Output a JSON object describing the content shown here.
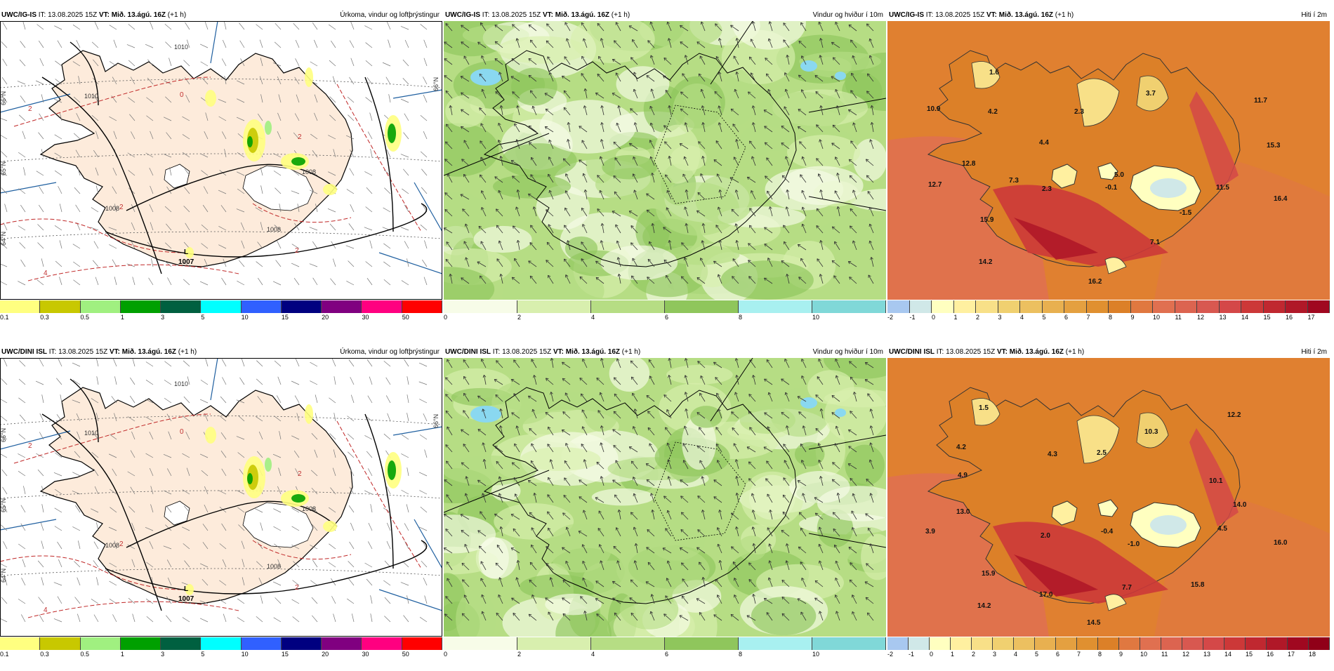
{
  "panels": [
    {
      "id": "p1",
      "model": "UWC/IG-IS",
      "it_label": "IT: 13.08.2025 15Z",
      "vt_label": "VT:",
      "vt_value": "Mið. 13.ágú. 16Z",
      "lead": "(+1 h)",
      "field": "Úrkoma, vindur og loftþrýstingur",
      "kind": "precip",
      "low_label": "L",
      "low_value": "1007",
      "isobar_labels": [
        "1008",
        "1008",
        "1008",
        "1010",
        "1010"
      ],
      "red_labels": [
        "0",
        "2",
        "2",
        "4",
        "2",
        "2"
      ],
      "lat_labels": [
        "66°N",
        "65°N",
        "64°N",
        "66°N"
      ]
    },
    {
      "id": "p2",
      "model": "UWC/IG-IS",
      "it_label": "IT: 13.08.2025 15Z",
      "vt_label": "VT:",
      "vt_value": "Mið. 13.ágú. 16Z",
      "lead": "(+1 h)",
      "field": "Vindur og hviður í 10m",
      "kind": "wind"
    },
    {
      "id": "p3",
      "model": "UWC/IG-IS",
      "it_label": "IT: 13.08.2025 15Z",
      "vt_label": "VT:",
      "vt_value": "Mið. 13.ágú. 16Z",
      "lead": "(+1 h)",
      "field": "Hiti í 2m",
      "kind": "temp",
      "temps": [
        "1.6",
        "3.7",
        "10.9",
        "4.2",
        "2.3",
        "11.7",
        "4.4",
        "15.3",
        "12.8",
        "5.0",
        "7.3",
        "2.3",
        "-0.1",
        "11.5",
        "12.7",
        "16.4",
        "-1.5",
        "15.9",
        "7.1",
        "14.2",
        "16.2"
      ]
    },
    {
      "id": "p4",
      "model": "UWC/DINI ISL",
      "it_label": "IT: 13.08.2025 15Z",
      "vt_label": "VT:",
      "vt_value": "Mið. 13.ágú. 16Z",
      "lead": "(+1 h)",
      "field": "Úrkoma, vindur og loftþrýstingur",
      "kind": "precip",
      "low_label": "L",
      "low_value": "1007",
      "isobar_labels": [
        "1008",
        "1008",
        "1008",
        "1010",
        "1010"
      ],
      "red_labels": [
        "0",
        "2",
        "2",
        "4",
        "2",
        "2"
      ],
      "lat_labels": [
        "66°N",
        "65°N",
        "64°N",
        "66°N"
      ]
    },
    {
      "id": "p5",
      "model": "UWC/DINI ISL",
      "it_label": "IT: 13.08.2025 15Z",
      "vt_label": "VT:",
      "vt_value": "Mið. 13.ágú. 16Z",
      "lead": "(+1 h)",
      "field": "Vindur og hviður í 10m",
      "kind": "wind"
    },
    {
      "id": "p6",
      "model": "UWC/DINI ISL",
      "it_label": "IT: 13.08.2025 15Z",
      "vt_label": "VT:",
      "vt_value": "Mið. 13.ágú. 16Z",
      "lead": "(+1 h)",
      "field": "Hiti í 2m",
      "kind": "temp",
      "temps": [
        "1.5",
        "12.2",
        "10.3",
        "4.2",
        "4.3",
        "2.5",
        "4.9",
        "10.1",
        "14.0",
        "13.0",
        "3.9",
        "2.0",
        "-0.4",
        "4.5",
        "-1.0",
        "16.0",
        "15.9",
        "7.7",
        "15.8",
        "14.2",
        "17.0",
        "14.5"
      ]
    }
  ],
  "scales": {
    "precip": {
      "ticks": [
        "0.1",
        "0.3",
        "0.5",
        "1",
        "3",
        "5",
        "10",
        "15",
        "20",
        "30",
        "50"
      ],
      "colors": [
        "#ffff80",
        "#c8c800",
        "#a0f080",
        "#00a000",
        "#006040",
        "#00ffff",
        "#3060ff",
        "#000080",
        "#800080",
        "#ff0080",
        "#ff0000"
      ]
    },
    "wind": {
      "ticks": [
        "0",
        "2",
        "4",
        "6",
        "8",
        "10"
      ],
      "colors": [
        "#f7fce8",
        "#d8efae",
        "#b6dd84",
        "#8fc65c",
        "#a8f0f0",
        "#80d8d8"
      ]
    },
    "temp1": {
      "ticks": [
        "-2",
        "-1",
        "0",
        "1",
        "2",
        "3",
        "4",
        "5",
        "6",
        "7",
        "8",
        "9",
        "10",
        "11",
        "12",
        "13",
        "14",
        "15",
        "16",
        "17"
      ],
      "colors": [
        "#a8c8f0",
        "#d0e8e8",
        "#ffffc0",
        "#fff0a0",
        "#f8e088",
        "#f0d070",
        "#ecc060",
        "#e8b050",
        "#e4a040",
        "#e09030",
        "#dc8028",
        "#e07840",
        "#e07050",
        "#dc6450",
        "#d85850",
        "#d44848",
        "#cc3838",
        "#c02830",
        "#b01828",
        "#a00820"
      ]
    },
    "temp2": {
      "ticks": [
        "-2",
        "-1",
        "0",
        "1",
        "2",
        "3",
        "4",
        "5",
        "6",
        "7",
        "8",
        "9",
        "10",
        "11",
        "12",
        "13",
        "14",
        "15",
        "16",
        "17",
        "18"
      ],
      "colors": [
        "#a8c8f0",
        "#d0e8e8",
        "#ffffc0",
        "#fff0a0",
        "#f8e088",
        "#f0d070",
        "#ecc060",
        "#e8b050",
        "#e4a040",
        "#e09030",
        "#dc8028",
        "#e07840",
        "#e07050",
        "#dc6450",
        "#d85850",
        "#d44848",
        "#cc3838",
        "#c02830",
        "#b01828",
        "#a00820",
        "#900018"
      ]
    }
  },
  "colors": {
    "land_precip": "#fdebdb",
    "sea_precip": "#ffffff",
    "isobar": "#000000",
    "temp_contour": "#c02828",
    "grid_line": "#2060a0",
    "wind_base": "#a8d070",
    "temp_sea": "#e08030"
  }
}
